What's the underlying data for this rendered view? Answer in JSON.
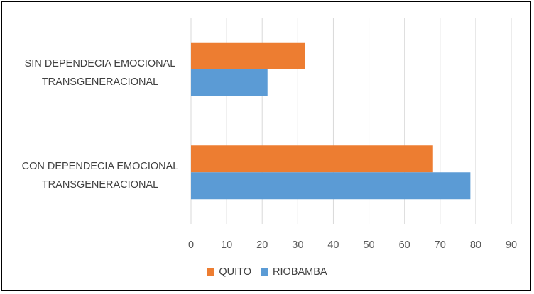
{
  "chart_data": {
    "type": "bar",
    "orientation": "horizontal",
    "categories": [
      [
        "SIN DEPENDECIA EMOCIONAL",
        "TRANSGENERACIONAL"
      ],
      [
        "CON DEPENDECIA EMOCIONAL",
        "TRANSGENERACIONAL"
      ]
    ],
    "series": [
      {
        "name": "QUITO",
        "color": "#ED7D31",
        "values": [
          32,
          68
        ]
      },
      {
        "name": "RIOBAMBA",
        "color": "#5B9BD5",
        "values": [
          21.5,
          78.5
        ]
      }
    ],
    "xlim": [
      0,
      90
    ],
    "xticks": [
      "0",
      "10",
      "20",
      "30",
      "40",
      "50",
      "60",
      "70",
      "80",
      "90"
    ],
    "grid": true,
    "legend_position": "bottom"
  }
}
